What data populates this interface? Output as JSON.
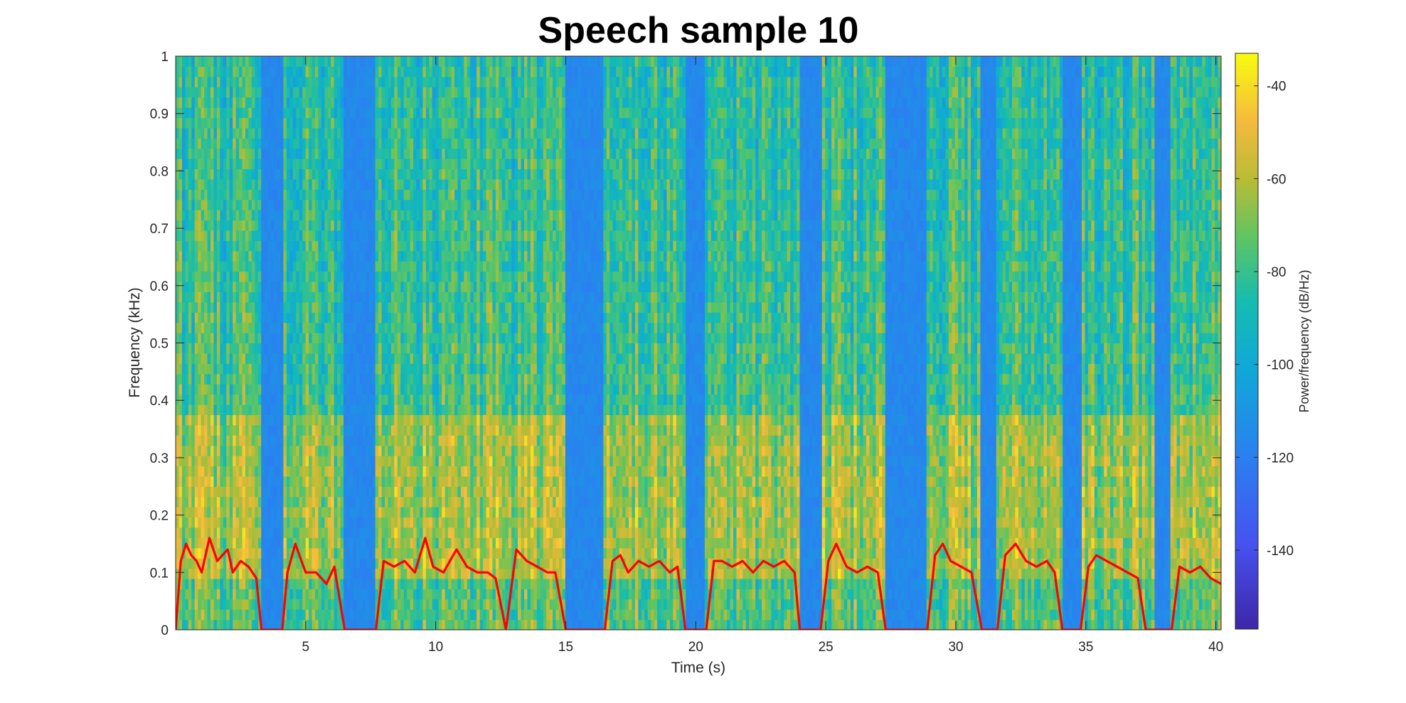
{
  "chart_data": {
    "type": "heatmap",
    "title": "Speech sample 10",
    "xlabel": "Time (s)",
    "ylabel": "Frequency (kHz)",
    "xlim": [
      0,
      40.2
    ],
    "ylim": [
      0,
      1
    ],
    "xticks": [
      5,
      10,
      15,
      20,
      25,
      30,
      35,
      40
    ],
    "yticks": [
      0,
      0.1,
      0.2,
      0.3,
      0.4,
      0.5,
      0.6,
      0.7,
      0.8,
      0.9,
      1
    ],
    "ytick_labels": [
      "0",
      "0.1",
      "0.2",
      "0.3",
      "0.4",
      "0.5",
      "0.6",
      "0.7",
      "0.8",
      "0.9",
      "1"
    ],
    "colormap": "parula",
    "colorbar": {
      "label": "Power/frequency (dB/Hz)",
      "range": [
        -157,
        -33
      ],
      "ticks": [
        -40,
        -60,
        -80,
        -100,
        -120,
        -140
      ]
    },
    "silence_intervals": [
      [
        3.3,
        4.1
      ],
      [
        6.5,
        7.7
      ],
      [
        15.0,
        16.5
      ],
      [
        19.6,
        20.4
      ],
      [
        24.0,
        24.8
      ],
      [
        27.3,
        28.9
      ],
      [
        31.0,
        31.6
      ],
      [
        34.1,
        34.8
      ],
      [
        37.6,
        38.3
      ]
    ],
    "pitch_series": {
      "color": "#ff0000",
      "x": [
        0.0,
        0.2,
        0.4,
        0.6,
        0.8,
        1.0,
        1.3,
        1.6,
        2.0,
        2.2,
        2.5,
        2.8,
        3.1,
        3.3,
        4.1,
        4.3,
        4.6,
        5.0,
        5.4,
        5.8,
        6.1,
        6.5,
        7.7,
        8.0,
        8.4,
        8.8,
        9.2,
        9.6,
        9.9,
        10.3,
        10.8,
        11.2,
        11.6,
        12.0,
        12.3,
        12.7,
        13.1,
        13.5,
        13.9,
        14.3,
        14.6,
        15.0,
        16.5,
        16.8,
        17.1,
        17.4,
        17.8,
        18.2,
        18.6,
        19.0,
        19.3,
        19.6,
        20.4,
        20.7,
        21.0,
        21.4,
        21.8,
        22.2,
        22.6,
        23.0,
        23.4,
        23.8,
        24.0,
        24.8,
        25.1,
        25.4,
        25.8,
        26.2,
        26.6,
        27.0,
        27.3,
        28.9,
        29.2,
        29.5,
        29.8,
        30.2,
        30.6,
        31.0,
        31.6,
        31.9,
        32.3,
        32.7,
        33.1,
        33.5,
        33.8,
        34.1,
        34.8,
        35.1,
        35.4,
        35.8,
        36.2,
        36.6,
        37.0,
        37.3,
        37.6,
        38.3,
        38.6,
        39.0,
        39.4,
        39.8,
        40.2
      ],
      "y": [
        0.0,
        0.12,
        0.15,
        0.13,
        0.12,
        0.1,
        0.16,
        0.12,
        0.14,
        0.1,
        0.12,
        0.11,
        0.09,
        0.0,
        0.0,
        0.1,
        0.15,
        0.1,
        0.1,
        0.08,
        0.11,
        0.0,
        0.0,
        0.12,
        0.11,
        0.12,
        0.1,
        0.16,
        0.11,
        0.1,
        0.14,
        0.11,
        0.1,
        0.1,
        0.09,
        0.0,
        0.14,
        0.12,
        0.11,
        0.1,
        0.1,
        0.0,
        0.0,
        0.12,
        0.13,
        0.1,
        0.12,
        0.11,
        0.12,
        0.1,
        0.11,
        0.0,
        0.0,
        0.12,
        0.12,
        0.11,
        0.12,
        0.1,
        0.12,
        0.11,
        0.12,
        0.1,
        0.0,
        0.0,
        0.12,
        0.15,
        0.11,
        0.1,
        0.11,
        0.1,
        0.0,
        0.0,
        0.13,
        0.15,
        0.12,
        0.11,
        0.1,
        0.0,
        0.0,
        0.13,
        0.15,
        0.12,
        0.11,
        0.12,
        0.1,
        0.0,
        0.0,
        0.11,
        0.13,
        0.12,
        0.11,
        0.1,
        0.09,
        0.0,
        0.0,
        0.0,
        0.11,
        0.1,
        0.11,
        0.09,
        0.08
      ]
    }
  }
}
